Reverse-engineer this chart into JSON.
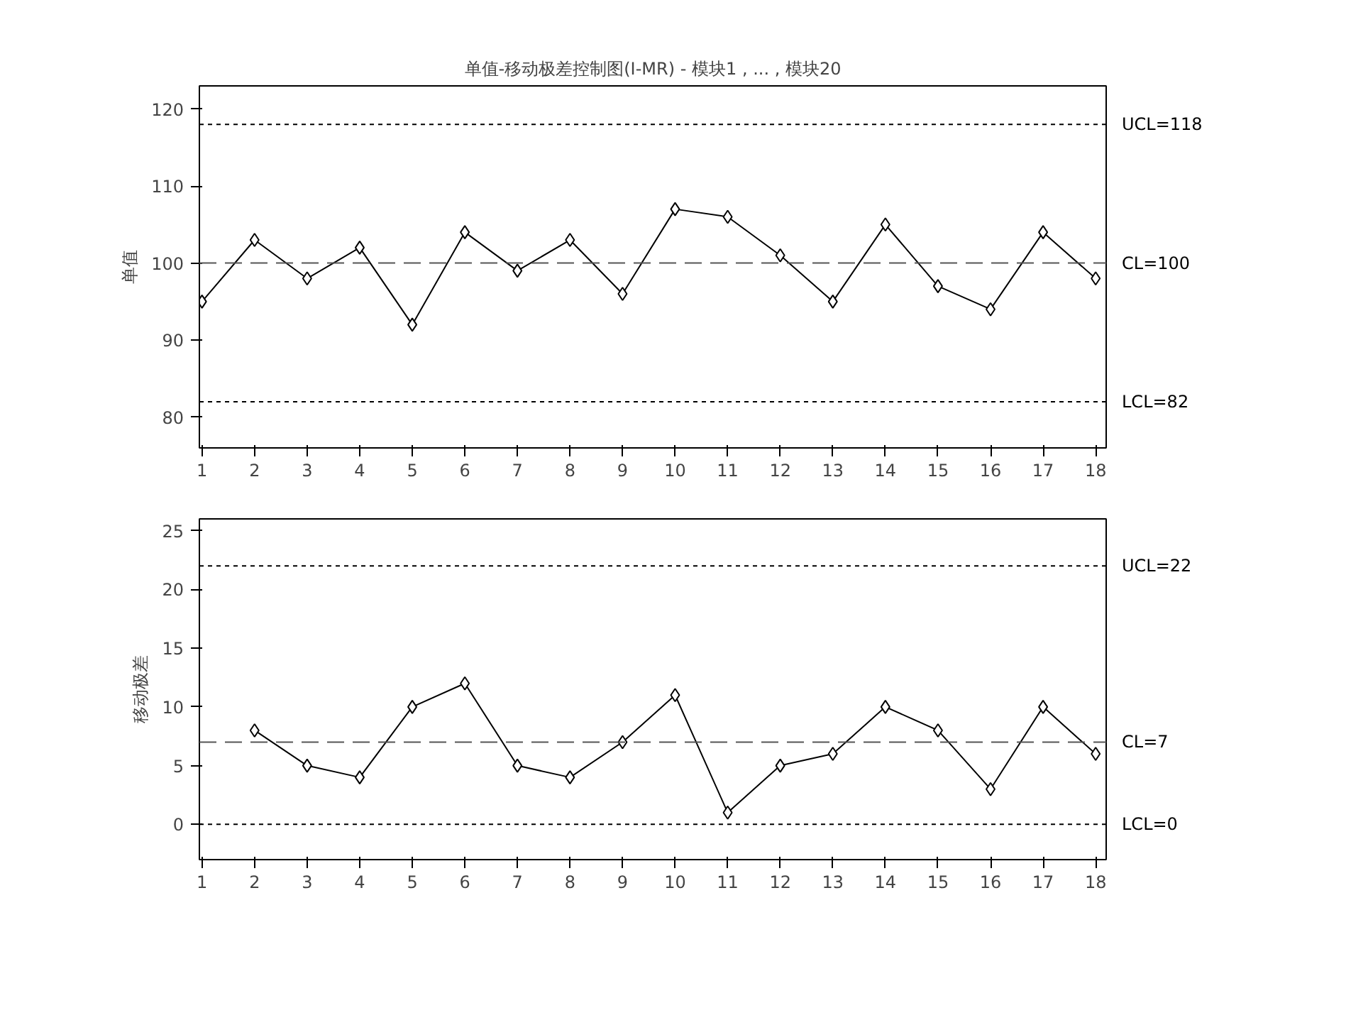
{
  "chart_data": [
    {
      "type": "line",
      "title": "单值-移动极差控制图(I-MR) - 模块1 , ... , 模块20",
      "ylabel": "单值",
      "x": [
        1,
        2,
        3,
        4,
        5,
        6,
        7,
        8,
        9,
        10,
        11,
        12,
        13,
        14,
        15,
        16,
        17,
        18
      ],
      "series": [
        {
          "color": "#000000",
          "values": [
            95,
            103,
            98,
            102,
            92,
            104,
            99,
            103,
            96,
            107,
            106,
            101,
            95,
            105,
            97,
            94,
            104,
            98
          ]
        }
      ],
      "xlim": [
        0.95,
        18.2
      ],
      "ylim": [
        76,
        123
      ],
      "xticks": [
        1,
        2,
        3,
        4,
        5,
        6,
        7,
        8,
        9,
        10,
        11,
        12,
        13,
        14,
        15,
        16,
        17,
        18
      ],
      "yticks": [
        80,
        90,
        100,
        110,
        120
      ],
      "ref_lines": [
        {
          "axis": "y",
          "value": 118,
          "label": "UCL=118",
          "line_style": "dotted"
        },
        {
          "axis": "y",
          "value": 100,
          "label": "CL=100",
          "line_style": "dashed",
          "color": "#555555"
        },
        {
          "axis": "y",
          "value": 82,
          "label": "LCL=82",
          "line_style": "dotted"
        }
      ],
      "marker": "diamond",
      "grid": false
    },
    {
      "type": "line",
      "ylabel": "移动极差",
      "series": [
        {
          "color": "#000000",
          "x": [
            2,
            3,
            4,
            5,
            6,
            7,
            8,
            9,
            10,
            11,
            12,
            13,
            14,
            15,
            16,
            17,
            18
          ],
          "values": [
            8,
            5,
            4,
            10,
            12,
            5,
            4,
            7,
            11,
            1,
            5,
            6,
            10,
            8,
            3,
            10,
            6
          ]
        }
      ],
      "xlim": [
        0.95,
        18.2
      ],
      "ylim": [
        -3,
        26
      ],
      "xticks": [
        1,
        2,
        3,
        4,
        5,
        6,
        7,
        8,
        9,
        10,
        11,
        12,
        13,
        14,
        15,
        16,
        17,
        18
      ],
      "yticks": [
        0,
        5,
        10,
        15,
        20,
        25
      ],
      "ref_lines": [
        {
          "axis": "y",
          "value": 22,
          "label": "UCL=22",
          "line_style": "dotted"
        },
        {
          "axis": "y",
          "value": 7,
          "label": "CL=7",
          "line_style": "dashed",
          "color": "#555555"
        },
        {
          "axis": "y",
          "value": 0,
          "label": "LCL=0",
          "line_style": "dotted"
        }
      ],
      "marker": "diamond",
      "grid": false
    }
  ]
}
